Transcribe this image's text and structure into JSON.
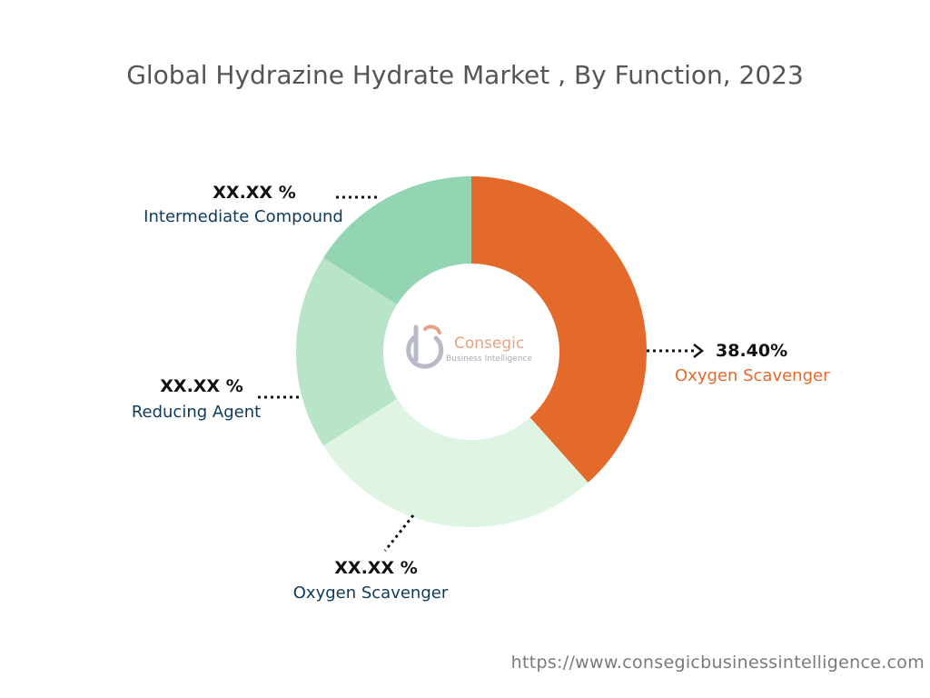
{
  "chart_data": {
    "type": "pie",
    "title": "Global Hydrazine Hydrate Market , By Function, 2023",
    "center_text": {
      "brand": "Consegic",
      "tagline": "Business Intelligence"
    },
    "slices": [
      {
        "label": "Oxygen Scavenger",
        "display_value": "38.40%",
        "value": 38.4,
        "color": "#e36a2b",
        "label_color": "#e36a2b"
      },
      {
        "label": "Oxygen Scavenger",
        "display_value": "XX.XX %",
        "value": 27.6,
        "color": "#e0f4e3",
        "label_color": "#0e3a5c"
      },
      {
        "label": "Reducing Agent",
        "display_value": "XX.XX %",
        "value": 18.0,
        "color": "#b8e5c8",
        "label_color": "#0e3a5c"
      },
      {
        "label": "Intermediate Compound",
        "display_value": "XX.XX %",
        "value": 16.0,
        "color": "#93d4b2",
        "label_color": "#0e3a5c"
      }
    ]
  },
  "footer": {
    "url": "https://www.consegicbusinessintelligence.com"
  },
  "colors": {
    "title": "#555555",
    "connector": "#111111"
  }
}
